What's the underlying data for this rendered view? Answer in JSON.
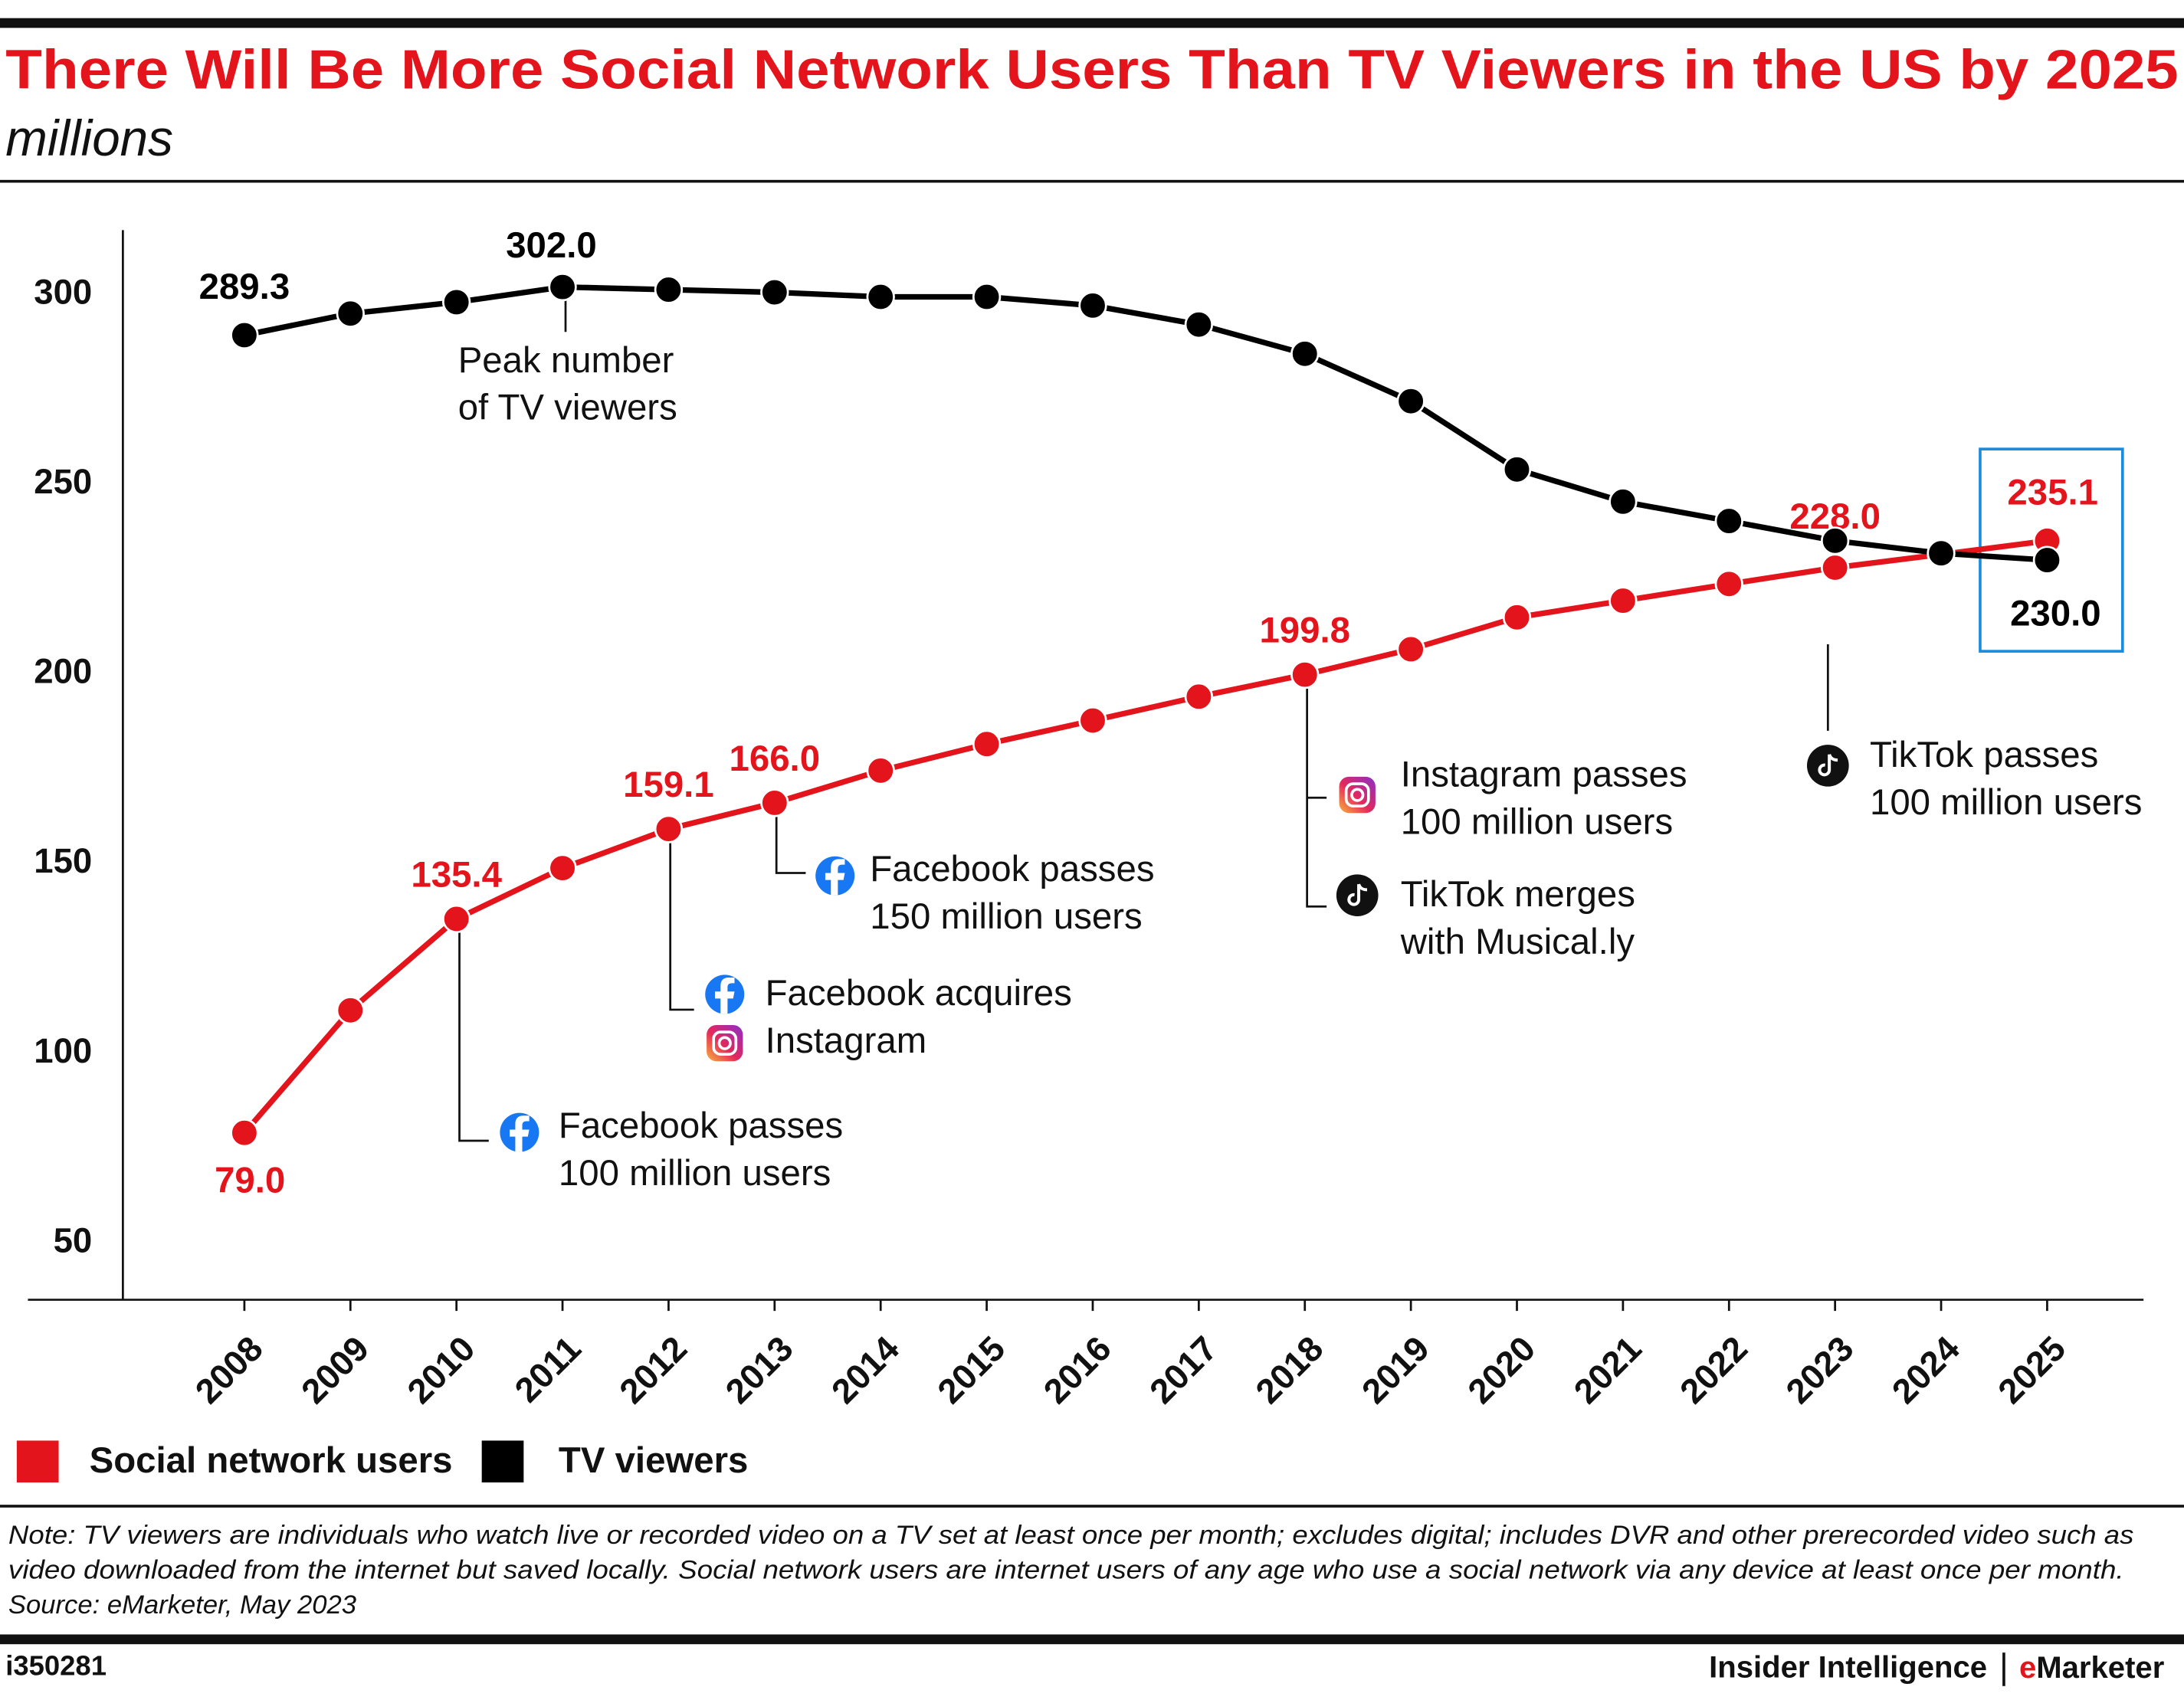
{
  "chart_data": {
    "type": "line",
    "title": "There Will Be More Social Network Users Than TV Viewers in the US by 2025",
    "subtitle": "millions",
    "categories": [
      "2008",
      "2009",
      "2010",
      "2011",
      "2012",
      "2013",
      "2014",
      "2015",
      "2016",
      "2017",
      "2018",
      "2019",
      "2020",
      "2021",
      "2022",
      "2023",
      "2024",
      "2025"
    ],
    "series": [
      {
        "name": "Social network users",
        "color": "#e3141b",
        "values": [
          79.0,
          111.3,
          135.4,
          148.8,
          159.1,
          166.0,
          174.5,
          181.5,
          187.7,
          194.0,
          199.8,
          206.5,
          214.9,
          219.3,
          223.7,
          228.0,
          231.5,
          235.1
        ],
        "value_labels": [
          "79.0",
          null,
          "135.4",
          null,
          "159.1",
          "166.0",
          null,
          null,
          null,
          null,
          "199.8",
          null,
          null,
          null,
          null,
          "228.0",
          null,
          "235.1"
        ]
      },
      {
        "name": "TV viewers",
        "color": "#000000",
        "values": [
          289.3,
          295.0,
          298.0,
          302.0,
          301.3,
          300.6,
          299.4,
          299.4,
          297.1,
          292.1,
          284.4,
          271.9,
          253.9,
          245.4,
          240.3,
          235.1,
          231.8,
          230.0
        ],
        "value_labels": [
          "289.3",
          null,
          null,
          "302.0",
          null,
          null,
          null,
          null,
          null,
          null,
          null,
          null,
          null,
          null,
          null,
          null,
          null,
          "230.0"
        ]
      }
    ],
    "ylim": [
      35,
      317
    ],
    "yticks": [
      50,
      100,
      150,
      200,
      250,
      300
    ],
    "grid": false,
    "annotations": [
      {
        "lines": [
          "Peak number",
          "of TV viewers"
        ]
      },
      {
        "lines": [
          "Facebook passes",
          "100 million users"
        ],
        "icons": [
          "facebook"
        ]
      },
      {
        "lines": [
          "Facebook acquires",
          "Instagram"
        ],
        "icons": [
          "facebook",
          "instagram"
        ]
      },
      {
        "lines": [
          "Facebook passes",
          "150 million users"
        ],
        "icons": [
          "facebook"
        ]
      },
      {
        "lines": [
          "Instagram passes",
          "100 million users"
        ],
        "icons": [
          "instagram"
        ]
      },
      {
        "lines": [
          "TikTok merges",
          "with Musical.ly"
        ],
        "icons": [
          "tiktok"
        ]
      },
      {
        "lines": [
          "TikTok passes",
          "100 million users"
        ],
        "icons": [
          "tiktok"
        ]
      }
    ],
    "note": [
      "Note: TV viewers are individuals who watch live or recorded video on a TV set at least once per month; excludes digital; includes DVR and other prerecorded video such as",
      "video downloaded from the internet but saved locally. Social network users are internet users of any age who use a social network via any device at least once per month."
    ],
    "source": "Source: eMarketer, May 2023",
    "chart_id": "i350281",
    "brand": "Insider Intelligence",
    "brand_partner": "eMarketer"
  }
}
